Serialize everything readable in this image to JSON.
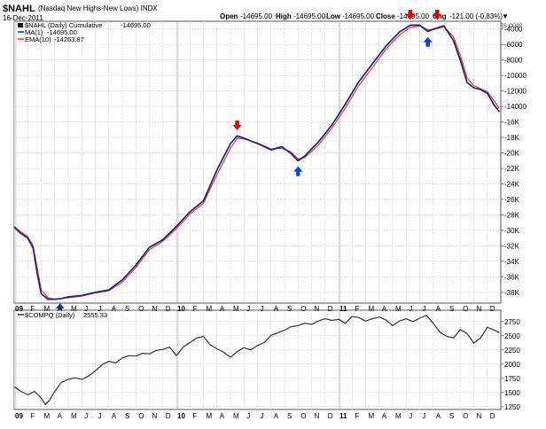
{
  "header": {
    "symbol": "$NAHL",
    "description": "(Nasdaq New Highs-New Lows) INDX",
    "date": "16-Dec-2011",
    "open_label": "Open",
    "open_value": "-14695.00",
    "high_label": "High",
    "high_value": "-14695.00",
    "low_label": "Low",
    "low_value": "-14695.00",
    "close_label": "Close",
    "close_value": "-14695.00",
    "chg_label": "Chg",
    "chg_value": "-121.00 (-0.83%)",
    "watermark": "© StockCharts.com"
  },
  "colors": {
    "cumulative": "#000000",
    "ma": "#1a237e",
    "ema": "#e53935",
    "compq": "#333333",
    "arrow_red": "#e00000",
    "arrow_blue": "#1040e0",
    "year_band": "#e0e0e0"
  },
  "chart_data": [
    {
      "type": "line",
      "name": "top-panel",
      "legend": [
        {
          "name": "$NAHL (Daily) Cumulative",
          "value": "-14695.00"
        },
        {
          "name": "MA(1)",
          "value": "-14695.00"
        },
        {
          "name": "EMA(10)",
          "value": "-14263.87"
        }
      ],
      "ylim": [
        -39400,
        -3000
      ],
      "y_ticks": [
        -4000,
        -6000,
        -8000,
        -10000,
        -12000,
        -14000,
        -16000,
        -18000,
        -20000,
        -22000,
        -24000,
        -26000,
        -28000,
        -30000,
        -32000,
        -34000,
        -36000,
        -38000
      ],
      "y_tick_labels": [
        "-4000",
        "-6000",
        "-8000",
        "-10000",
        "-12000",
        "-14000",
        "-16K",
        "-18K",
        "-20K",
        "-22K",
        "-24K",
        "-26K",
        "-28K",
        "-30K",
        "-32K",
        "-34K",
        "-36K",
        "-38K"
      ],
      "x_range": [
        0,
        36
      ],
      "series": [
        {
          "name": "MA(1)",
          "points": [
            [
              0.0,
              -29600
            ],
            [
              0.5,
              -30400
            ],
            [
              1.0,
              -31000
            ],
            [
              1.4,
              -32300
            ],
            [
              1.7,
              -35500
            ],
            [
              2.0,
              -38200
            ],
            [
              2.5,
              -38900
            ],
            [
              3.0,
              -38900
            ],
            [
              3.5,
              -38800
            ],
            [
              4.0,
              -38600
            ],
            [
              5.0,
              -38400
            ],
            [
              6.0,
              -38000
            ],
            [
              7.0,
              -37700
            ],
            [
              8.0,
              -36400
            ],
            [
              9.0,
              -34500
            ],
            [
              10.0,
              -32200
            ],
            [
              11.0,
              -31200
            ],
            [
              12.0,
              -29500
            ],
            [
              13.0,
              -27600
            ],
            [
              14.0,
              -26200
            ],
            [
              15.0,
              -22200
            ],
            [
              16.0,
              -18800
            ],
            [
              16.5,
              -17800
            ],
            [
              17.0,
              -18100
            ],
            [
              18.0,
              -18800
            ],
            [
              19.0,
              -19600
            ],
            [
              19.8,
              -19200
            ],
            [
              20.5,
              -20100
            ],
            [
              21.0,
              -21000
            ],
            [
              21.5,
              -20400
            ],
            [
              22.5,
              -18600
            ],
            [
              23.5,
              -16400
            ],
            [
              24.5,
              -13700
            ],
            [
              25.5,
              -10800
            ],
            [
              26.5,
              -8500
            ],
            [
              27.5,
              -6200
            ],
            [
              28.5,
              -4400
            ],
            [
              29.3,
              -3500
            ],
            [
              30.0,
              -3500
            ],
            [
              30.6,
              -4300
            ],
            [
              31.2,
              -3900
            ],
            [
              31.8,
              -3600
            ],
            [
              32.5,
              -5500
            ],
            [
              33.0,
              -8000
            ],
            [
              33.5,
              -10900
            ],
            [
              34.0,
              -11600
            ],
            [
              34.5,
              -11800
            ],
            [
              35.0,
              -12300
            ],
            [
              35.5,
              -13800
            ],
            [
              35.9,
              -14695
            ]
          ]
        },
        {
          "name": "EMA(10)",
          "points": [
            [
              0.0,
              -29500
            ],
            [
              0.5,
              -30200
            ],
            [
              1.0,
              -30800
            ],
            [
              1.4,
              -32000
            ],
            [
              1.7,
              -34800
            ],
            [
              2.0,
              -37700
            ],
            [
              2.5,
              -38700
            ],
            [
              3.0,
              -38900
            ],
            [
              3.5,
              -38800
            ],
            [
              4.0,
              -38700
            ],
            [
              5.0,
              -38500
            ],
            [
              6.0,
              -38100
            ],
            [
              7.0,
              -37800
            ],
            [
              8.0,
              -36700
            ],
            [
              9.0,
              -34800
            ],
            [
              10.0,
              -32500
            ],
            [
              11.0,
              -31400
            ],
            [
              12.0,
              -29800
            ],
            [
              13.0,
              -27900
            ],
            [
              14.0,
              -26500
            ],
            [
              15.0,
              -22800
            ],
            [
              16.0,
              -19400
            ],
            [
              16.5,
              -18100
            ],
            [
              17.0,
              -18200
            ],
            [
              18.0,
              -18700
            ],
            [
              19.0,
              -19500
            ],
            [
              19.8,
              -19400
            ],
            [
              20.5,
              -19900
            ],
            [
              21.0,
              -20800
            ],
            [
              21.5,
              -20600
            ],
            [
              22.5,
              -19000
            ],
            [
              23.5,
              -16800
            ],
            [
              24.5,
              -14200
            ],
            [
              25.5,
              -11300
            ],
            [
              26.5,
              -9000
            ],
            [
              27.5,
              -6600
            ],
            [
              28.5,
              -4800
            ],
            [
              29.3,
              -3800
            ],
            [
              30.0,
              -3600
            ],
            [
              30.6,
              -4100
            ],
            [
              31.2,
              -4000
            ],
            [
              31.8,
              -3700
            ],
            [
              32.5,
              -5000
            ],
            [
              33.0,
              -7400
            ],
            [
              33.5,
              -10300
            ],
            [
              34.0,
              -11300
            ],
            [
              34.5,
              -11700
            ],
            [
              35.0,
              -12100
            ],
            [
              35.5,
              -13300
            ],
            [
              35.9,
              -14264
            ]
          ]
        }
      ],
      "annotations": [
        {
          "type": "arrow-down",
          "color": "red",
          "x": 16.5,
          "y": -16500
        },
        {
          "type": "arrow-up",
          "color": "blue",
          "x": 21.0,
          "y": -22300
        },
        {
          "type": "arrow-down",
          "color": "red",
          "x": 29.3,
          "y": -2200
        },
        {
          "type": "arrow-up",
          "color": "blue",
          "x": 30.6,
          "y": -5600
        },
        {
          "type": "arrow-down",
          "color": "red",
          "x": 31.3,
          "y": -2200
        },
        {
          "type": "arrow-up",
          "color": "blue",
          "x": 3.4,
          "y": -40000
        }
      ]
    },
    {
      "type": "line",
      "name": "bottom-panel",
      "legend": [
        {
          "name": "$COMPQ (Daily)",
          "value": "2555.33"
        }
      ],
      "ylim": [
        1200,
        2950
      ],
      "y_ticks": [
        1250,
        1500,
        1750,
        2000,
        2250,
        2500,
        2750
      ],
      "y_tick_labels": [
        "1250",
        "1500",
        "1750",
        "2000",
        "2250",
        "2500",
        "2750"
      ],
      "x_range": [
        0,
        36
      ],
      "series": [
        {
          "name": "$COMPQ",
          "points": [
            [
              0.0,
              1600
            ],
            [
              0.5,
              1520
            ],
            [
              1.0,
              1460
            ],
            [
              1.5,
              1520
            ],
            [
              2.0,
              1400
            ],
            [
              2.3,
              1290
            ],
            [
              2.6,
              1360
            ],
            [
              3.0,
              1520
            ],
            [
              3.5,
              1680
            ],
            [
              4.0,
              1730
            ],
            [
              4.5,
              1760
            ],
            [
              5.0,
              1730
            ],
            [
              5.5,
              1790
            ],
            [
              6.0,
              1880
            ],
            [
              6.5,
              1990
            ],
            [
              7.0,
              2050
            ],
            [
              7.5,
              2020
            ],
            [
              8.0,
              2110
            ],
            [
              8.5,
              2150
            ],
            [
              9.0,
              2140
            ],
            [
              9.5,
              2190
            ],
            [
              10.0,
              2180
            ],
            [
              10.5,
              2240
            ],
            [
              11.0,
              2260
            ],
            [
              11.5,
              2300
            ],
            [
              12.0,
              2150
            ],
            [
              12.5,
              2300
            ],
            [
              13.0,
              2380
            ],
            [
              13.5,
              2460
            ],
            [
              14.0,
              2490
            ],
            [
              14.5,
              2340
            ],
            [
              15.0,
              2270
            ],
            [
              15.5,
              2210
            ],
            [
              16.0,
              2120
            ],
            [
              16.5,
              2220
            ],
            [
              17.0,
              2290
            ],
            [
              17.5,
              2250
            ],
            [
              18.0,
              2330
            ],
            [
              18.5,
              2380
            ],
            [
              19.0,
              2510
            ],
            [
              19.5,
              2550
            ],
            [
              20.0,
              2600
            ],
            [
              20.5,
              2660
            ],
            [
              21.0,
              2680
            ],
            [
              21.5,
              2720
            ],
            [
              22.0,
              2700
            ],
            [
              22.5,
              2760
            ],
            [
              23.0,
              2800
            ],
            [
              23.5,
              2770
            ],
            [
              24.0,
              2790
            ],
            [
              24.5,
              2720
            ],
            [
              25.0,
              2840
            ],
            [
              25.5,
              2820
            ],
            [
              26.0,
              2760
            ],
            [
              26.5,
              2800
            ],
            [
              27.0,
              2830
            ],
            [
              27.5,
              2780
            ],
            [
              28.0,
              2680
            ],
            [
              28.5,
              2760
            ],
            [
              29.0,
              2800
            ],
            [
              29.5,
              2750
            ],
            [
              30.0,
              2810
            ],
            [
              30.5,
              2860
            ],
            [
              31.0,
              2720
            ],
            [
              31.5,
              2560
            ],
            [
              32.0,
              2490
            ],
            [
              32.5,
              2460
            ],
            [
              33.0,
              2610
            ],
            [
              33.5,
              2540
            ],
            [
              34.0,
              2370
            ],
            [
              34.5,
              2460
            ],
            [
              35.0,
              2650
            ],
            [
              35.5,
              2600
            ],
            [
              35.9,
              2555
            ]
          ]
        }
      ]
    }
  ],
  "x_axis": {
    "labels": [
      {
        "x": 0,
        "text": "09",
        "year": true
      },
      {
        "x": 1,
        "text": "F"
      },
      {
        "x": 2,
        "text": "M"
      },
      {
        "x": 3,
        "text": "A"
      },
      {
        "x": 4,
        "text": "M"
      },
      {
        "x": 5,
        "text": "J"
      },
      {
        "x": 6,
        "text": "J"
      },
      {
        "x": 7,
        "text": "A"
      },
      {
        "x": 8,
        "text": "S"
      },
      {
        "x": 9,
        "text": "O"
      },
      {
        "x": 10,
        "text": "N"
      },
      {
        "x": 11,
        "text": "D"
      },
      {
        "x": 12,
        "text": "10",
        "year": true
      },
      {
        "x": 13,
        "text": "F"
      },
      {
        "x": 14,
        "text": "M"
      },
      {
        "x": 15,
        "text": "A"
      },
      {
        "x": 16,
        "text": "M"
      },
      {
        "x": 17,
        "text": "J"
      },
      {
        "x": 18,
        "text": "J"
      },
      {
        "x": 19,
        "text": "A"
      },
      {
        "x": 20,
        "text": "S"
      },
      {
        "x": 21,
        "text": "O"
      },
      {
        "x": 22,
        "text": "N"
      },
      {
        "x": 23,
        "text": "D"
      },
      {
        "x": 24,
        "text": "11",
        "year": true
      },
      {
        "x": 25,
        "text": "F"
      },
      {
        "x": 26,
        "text": "M"
      },
      {
        "x": 27,
        "text": "A"
      },
      {
        "x": 28,
        "text": "M"
      },
      {
        "x": 29,
        "text": "J"
      },
      {
        "x": 30,
        "text": "J"
      },
      {
        "x": 31,
        "text": "A"
      },
      {
        "x": 32,
        "text": "S"
      },
      {
        "x": 33,
        "text": "O"
      },
      {
        "x": 34,
        "text": "N"
      },
      {
        "x": 35,
        "text": "D"
      }
    ]
  }
}
